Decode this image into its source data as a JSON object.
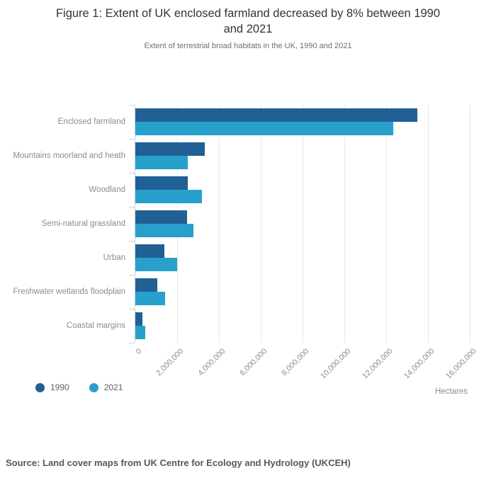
{
  "header": {
    "title_lines": [
      "Figure 1: Extent of UK enclosed farmland decreased by 8% between 1990",
      "and 2021"
    ],
    "subtitle": "Extent of terrestrial broad habitats in the UK, 1990 and 2021"
  },
  "chart_data": {
    "type": "bar",
    "orientation": "horizontal",
    "title": "Figure 1: Extent of UK enclosed farmland decreased by 8% between 1990 and 2021",
    "subtitle": "Extent of terrestrial broad habitats in the UK, 1990 and 2021",
    "xlabel": "Hectares",
    "xlim": [
      0,
      16000000
    ],
    "xticks": [
      0,
      2000000,
      4000000,
      6000000,
      8000000,
      10000000,
      12000000,
      14000000,
      16000000
    ],
    "xtick_labels": [
      "0",
      "2,000,000",
      "4,000,000",
      "6,000,000",
      "8,000,000",
      "10,000,000",
      "12,000,000",
      "14,000,000",
      "16,000,000"
    ],
    "categories": [
      "Enclosed farmland",
      "Mountains moorland and heath",
      "Woodland",
      "Semi-natural grassland",
      "Urban",
      "Freshwater wetlands floodplain",
      "Coastal margins"
    ],
    "series": [
      {
        "name": "1990",
        "color": "#206095",
        "values": [
          13480000,
          3320000,
          2500000,
          2460000,
          1390000,
          1060000,
          330000
        ]
      },
      {
        "name": "2021",
        "color": "#27A0CC",
        "values": [
          12330000,
          2510000,
          3180000,
          2770000,
          2000000,
          1410000,
          460000
        ]
      }
    ],
    "grid": true,
    "legend_position": "bottom-left"
  },
  "footer": {
    "source": "Source: Land cover maps from UK Centre for Ecology and Hydrology (UKCEH)"
  },
  "colors": {
    "series_1990": "#206095",
    "series_2021": "#27A0CC",
    "axis_line": "#c9d2de",
    "gridline": "#e6e6eb",
    "axis_text": "#8b8b96",
    "title_text": "#33333b",
    "subtitle_text": "#6e6e78",
    "source_text": "#58585c"
  }
}
